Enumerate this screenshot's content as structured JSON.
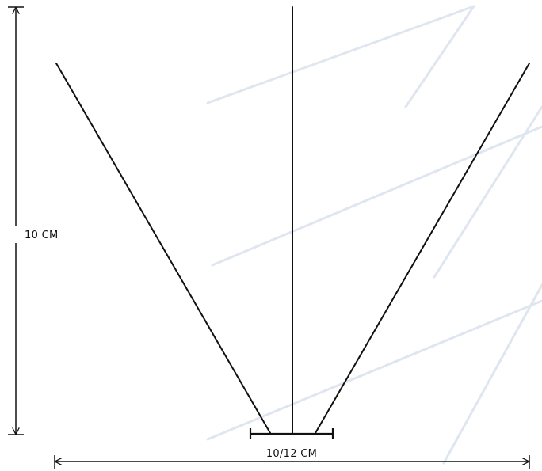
{
  "diagram": {
    "height_label": "10 CM",
    "width_label": "10/12 CM"
  },
  "colors": {
    "line": "#111111",
    "watermark": "#dfe6ef",
    "background": "#ffffff"
  },
  "icons": {
    "height_arrows": "double-headed-vertical-arrow",
    "width_arrows": "double-headed-horizontal-arrow"
  }
}
